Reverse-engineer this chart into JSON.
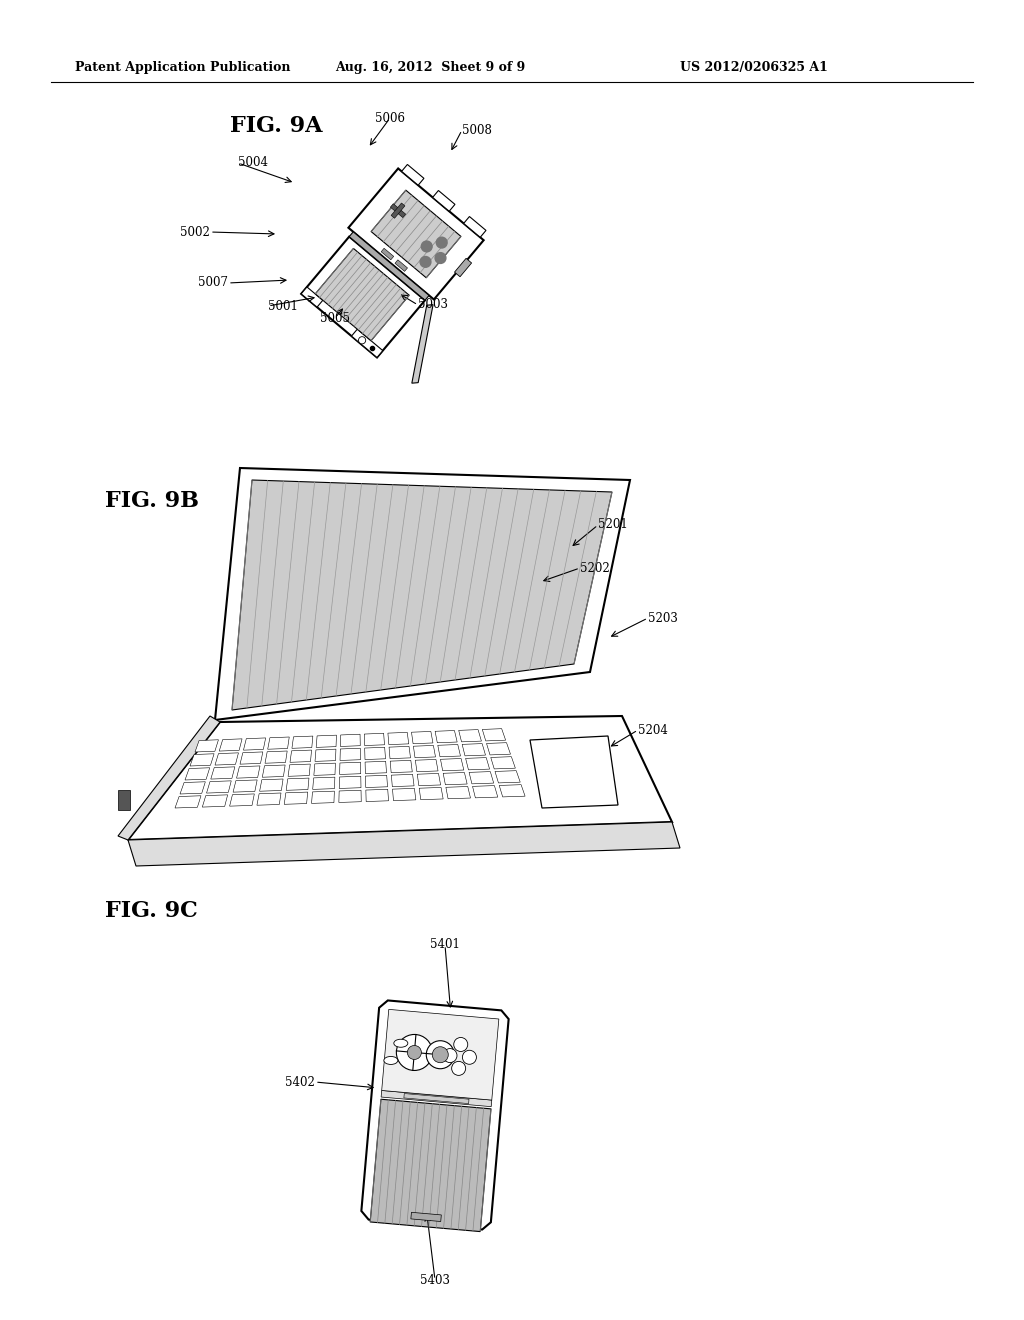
{
  "bg_color": "#ffffff",
  "header_left": "Patent Application Publication",
  "header_mid": "Aug. 16, 2012  Sheet 9 of 9",
  "header_right": "US 2012/0206325 A1",
  "fig9a_label": "FIG. 9A",
  "fig9b_label": "FIG. 9B",
  "fig9c_label": "FIG. 9C"
}
